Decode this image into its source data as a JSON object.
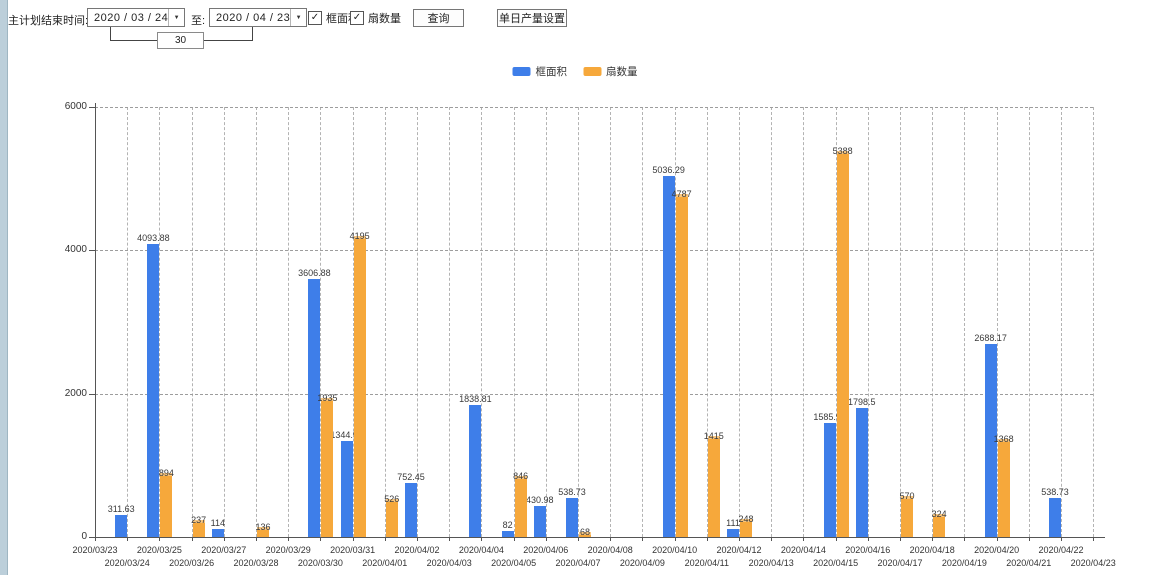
{
  "toolbar": {
    "label": "主计划结束时间:",
    "date_from": "2020 / 03 / 24",
    "to_label": "至:",
    "date_to": "2020 / 04 / 23",
    "dropdown_glyph": "▼",
    "interval_value": "30",
    "checkboxes": [
      {
        "label": "框面积",
        "checked": true,
        "glyph": "✓"
      },
      {
        "label": "扇数量",
        "checked": true,
        "glyph": "✓"
      }
    ],
    "query_button": "查询",
    "daily_output_button": "单日产量设置"
  },
  "legend": {
    "items": [
      {
        "label": "框面积",
        "color": "#3E7EE9"
      },
      {
        "label": "扇数量",
        "color": "#F6A83B"
      }
    ]
  },
  "chart_data": {
    "type": "bar",
    "title": "",
    "xlabel": "",
    "ylabel": "",
    "ylim": [
      0,
      6000
    ],
    "yticks": [
      0,
      2000,
      4000,
      6000
    ],
    "grid": true,
    "legend_position": "top-center",
    "bar_value_labels": true,
    "categories": [
      "2020/03/23",
      "2020/03/24",
      "2020/03/25",
      "2020/03/26",
      "2020/03/27",
      "2020/03/28",
      "2020/03/29",
      "2020/03/30",
      "2020/03/31",
      "2020/04/01",
      "2020/04/02",
      "2020/04/03",
      "2020/04/04",
      "2020/04/05",
      "2020/04/06",
      "2020/04/07",
      "2020/04/08",
      "2020/04/09",
      "2020/04/10",
      "2020/04/11",
      "2020/04/12",
      "2020/04/13",
      "2020/04/14",
      "2020/04/15",
      "2020/04/16",
      "2020/04/17",
      "2020/04/18",
      "2020/04/19",
      "2020/04/20",
      "2020/04/21",
      "2020/04/22",
      "2020/04/23"
    ],
    "series": [
      {
        "name": "框面积",
        "color": "#3E7EE9",
        "values": [
          null,
          311.63,
          4093.88,
          null,
          114,
          null,
          null,
          3606.88,
          1344.95,
          null,
          752.45,
          null,
          1838.81,
          82,
          430.98,
          538.73,
          null,
          null,
          5036.29,
          null,
          111,
          null,
          null,
          1585.96,
          1798.5,
          null,
          null,
          null,
          2688.17,
          null,
          538.73,
          null
        ]
      },
      {
        "name": "扇数量",
        "color": "#F6A83B",
        "values": [
          null,
          null,
          894,
          237,
          null,
          136,
          null,
          1935,
          4195,
          526,
          null,
          null,
          null,
          846,
          null,
          68,
          null,
          null,
          4787,
          1415,
          248,
          null,
          null,
          5388,
          null,
          570,
          324,
          null,
          1368,
          null,
          null,
          null
        ]
      }
    ]
  }
}
